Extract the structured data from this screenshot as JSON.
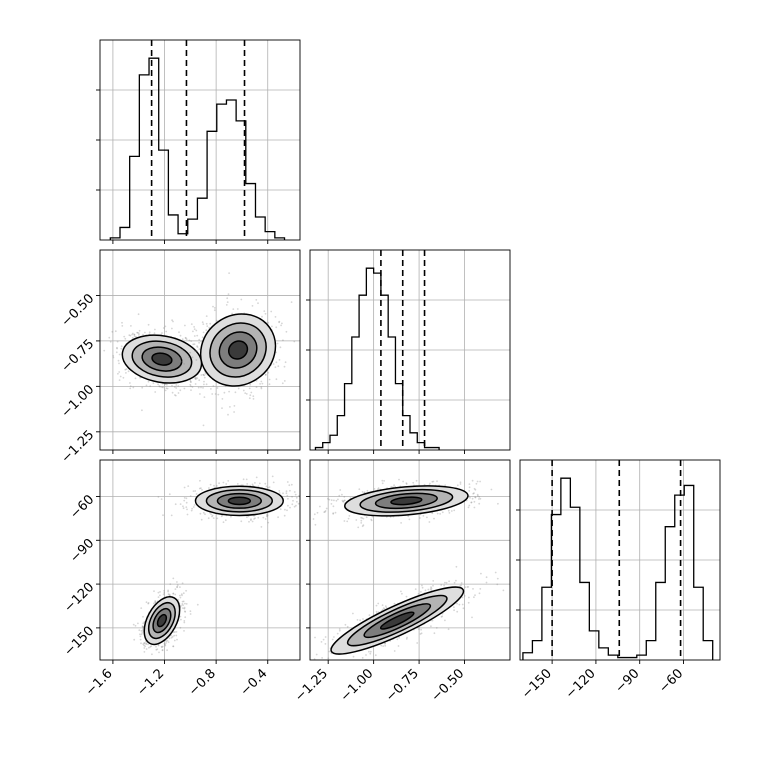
{
  "chart_data": {
    "type": "corner",
    "parameters": [
      {
        "name": "p0",
        "range": [
          -1.7,
          -0.15
        ],
        "ticks": [
          -1.6,
          -1.2,
          -0.8,
          -0.4
        ],
        "tick_labels": [
          "−1.6",
          "−1.2",
          "−0.8",
          "−0.4"
        ],
        "quantiles": [
          -1.3,
          -1.03,
          -0.58
        ],
        "hist": {
          "edges_start": -1.62,
          "bin_width": 0.075,
          "counts": [
            1,
            6,
            40,
            79,
            87,
            43,
            12,
            3,
            10,
            20,
            52,
            65,
            67,
            57,
            27,
            11,
            4,
            1
          ]
        }
      },
      {
        "name": "p1",
        "range": [
          -1.35,
          -0.25
        ],
        "ticks": [
          -1.25,
          -1.0,
          -0.75,
          -0.5
        ],
        "tick_labels": [
          "−1.25",
          "−1.00",
          "−0.75",
          "−0.50"
        ],
        "quantiles": [
          -0.96,
          -0.84,
          -0.72
        ],
        "hist": {
          "edges_start": -1.32,
          "bin_width": 0.04,
          "counts": [
            1,
            3,
            6,
            14,
            27,
            46,
            63,
            74,
            72,
            63,
            46,
            27,
            14,
            7,
            3,
            1,
            1
          ]
        }
      },
      {
        "name": "p2",
        "range": [
          -172,
          -35
        ],
        "ticks": [
          -150,
          -120,
          -90,
          -60
        ],
        "tick_labels": [
          "−150",
          "−120",
          "−90",
          "−60"
        ],
        "quantiles": [
          -150,
          -104,
          -62
        ],
        "hist": {
          "edges_start": -170,
          "bin_width": 6.5,
          "counts": [
            3,
            8,
            30,
            60,
            75,
            63,
            32,
            12,
            5,
            2,
            1,
            1,
            2,
            8,
            32,
            55,
            68,
            72,
            30,
            8
          ]
        }
      }
    ],
    "hist_grid_fractions": [
      0.25,
      0.5,
      0.75
    ],
    "clusters": [
      {
        "pair": [
          0,
          1
        ],
        "center": [
          -1.22,
          -0.85
        ],
        "sigma": [
          0.09,
          0.11
        ],
        "angle": 80
      },
      {
        "pair": [
          0,
          1
        ],
        "center": [
          -0.63,
          -0.8
        ],
        "sigma": [
          0.15,
          0.095
        ],
        "angle": 35
      },
      {
        "pair": [
          0,
          2
        ],
        "center": [
          -1.22,
          -145
        ],
        "sigma": [
          0.1,
          5
        ],
        "angle": 62
      },
      {
        "pair": [
          0,
          2
        ],
        "center": [
          -0.62,
          -63
        ],
        "sigma": [
          0.17,
          5
        ],
        "angle": 0
      },
      {
        "pair": [
          1,
          2
        ],
        "center": [
          -0.87,
          -145
        ],
        "sigma": [
          0.2,
          5
        ],
        "angle": 25
      },
      {
        "pair": [
          1,
          2
        ],
        "center": [
          -0.82,
          -63
        ],
        "sigma": [
          0.17,
          4.8
        ],
        "angle": 5
      }
    ],
    "contour_levels_sigma": [
      0.5,
      1.0,
      1.5,
      2.0
    ],
    "contour_fills": [
      "#3a3a3a",
      "#7d7d7d",
      "#b4b4b4",
      "#dedede"
    ],
    "grid": true,
    "xlabel": "",
    "ylabel": ""
  }
}
